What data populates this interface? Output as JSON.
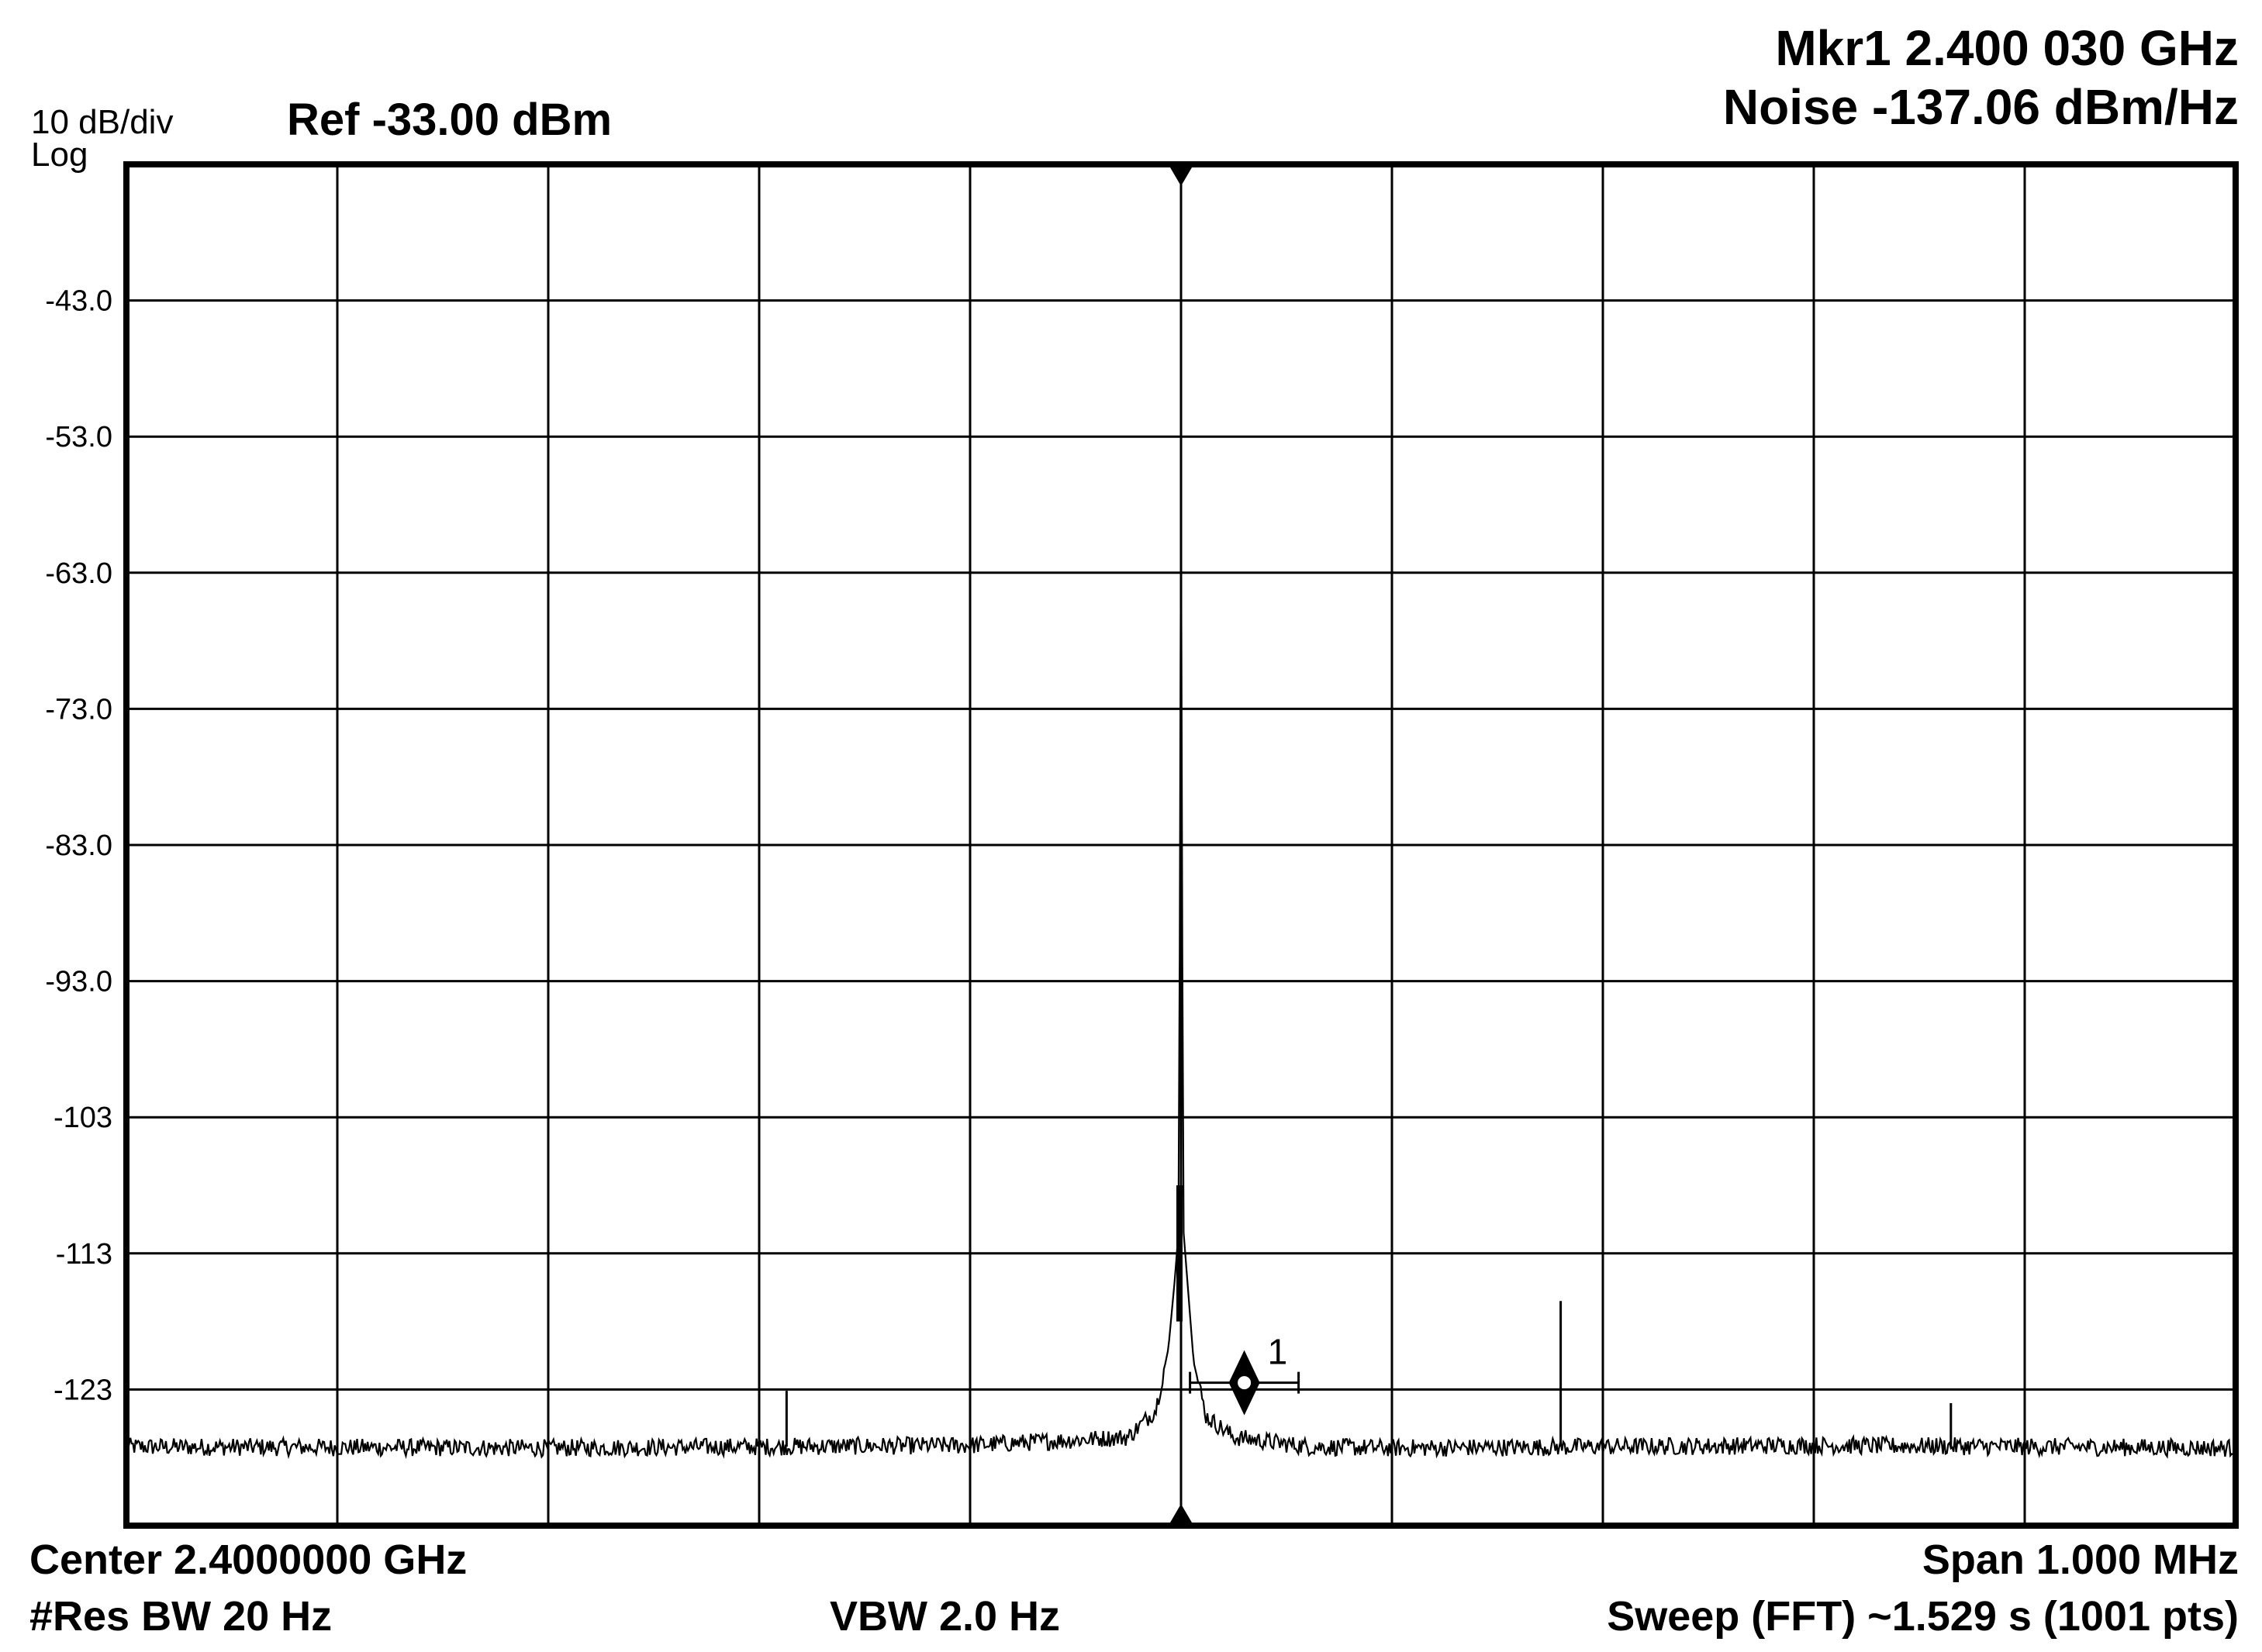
{
  "chart_data": {
    "type": "line",
    "title": "",
    "scale": "10 dB/div",
    "scale_mode": "Log",
    "reference": "Ref -33.00 dBm",
    "marker": {
      "label": "1",
      "readout_freq": "Mkr1 2.400 030 GHz",
      "readout_value": "Noise -137.06 dBm/Hz",
      "x": 30,
      "y": -122.5
    },
    "center": "Center 2.4000000 GHz",
    "span": "Span 1.000 MHz",
    "res_bw": "#Res BW 20 Hz",
    "vbw": "VBW 2.0 Hz",
    "sweep": "Sweep (FFT)  ~1.529 s (1001 pts)",
    "xlabel": "",
    "ylabel": "",
    "xlim": [
      -500,
      500
    ],
    "x_unit": "kHz offset from center",
    "ylim": [
      -133,
      -33
    ],
    "y_ticks": [
      "-43.0",
      "-53.0",
      "-63.0",
      "-73.0",
      "-83.0",
      "-93.0",
      "-103",
      "-113",
      "-123"
    ],
    "y_tick_values": [
      -43,
      -53,
      -63,
      -73,
      -83,
      -93,
      -103,
      -113,
      -123
    ],
    "grid": true,
    "noise_floor": -127.2,
    "series": [
      {
        "x": [
          -500,
          -300,
          -100,
          -25,
          -12,
          -6,
          -3,
          -1,
          0,
          1,
          3,
          6,
          12,
          25,
          60,
          100,
          300,
          500
        ],
        "values": [
          -127.2,
          -127.3,
          -127.1,
          -126.5,
          -124.5,
          -120,
          -115,
          -111,
          -58,
          -111,
          -115,
          -121,
          -125,
          -126.5,
          -127.2,
          -127.3,
          -127.1,
          -127.3
        ]
      }
    ],
    "spurs": [
      {
        "x": -187,
        "y": -123.1
      },
      {
        "x": 180,
        "y": -116.5
      },
      {
        "x": 365,
        "y": -124.0
      }
    ]
  },
  "colors": {
    "trace": "#000000",
    "grid": "#000000",
    "background": "#ffffff"
  }
}
